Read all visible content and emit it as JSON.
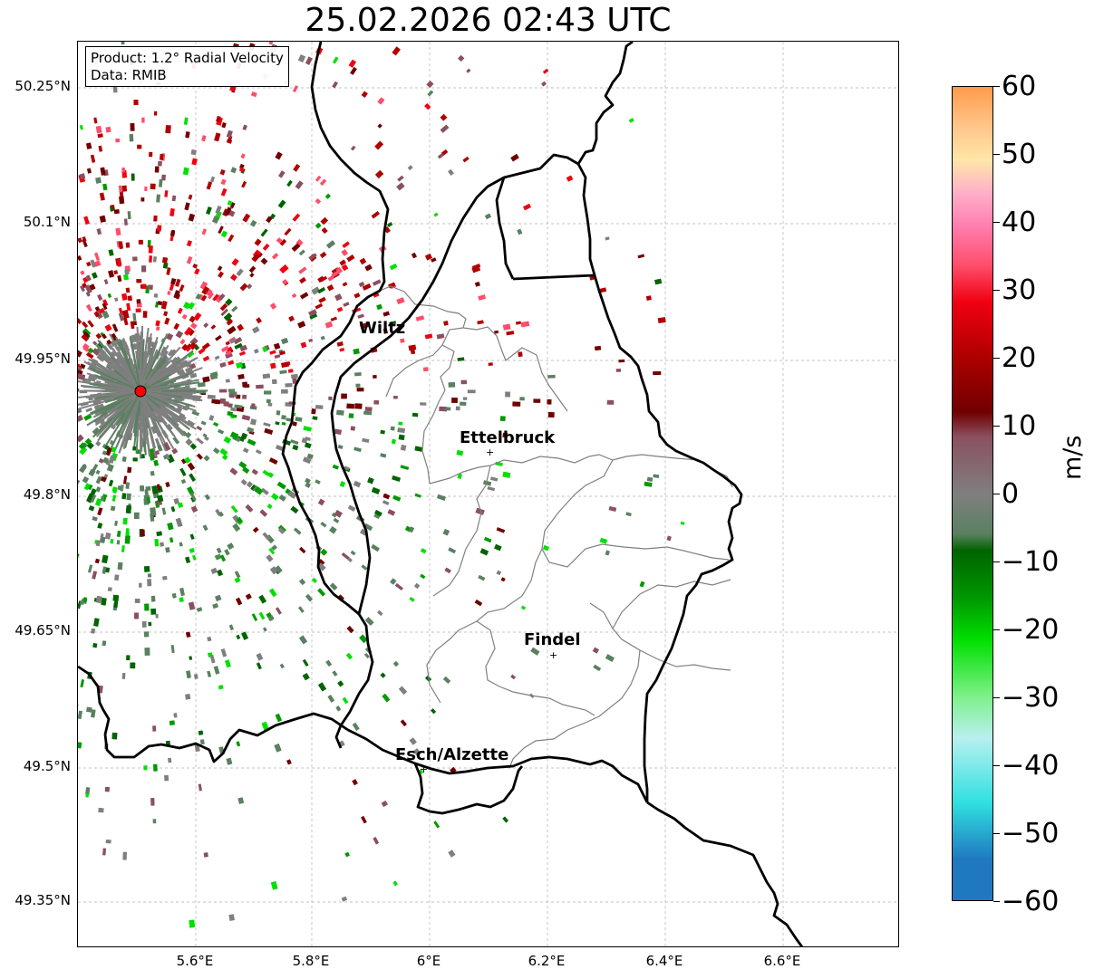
{
  "title": "25.02.2026 02:43 UTC",
  "info": {
    "product": "Product: 1.2° Radial Velocity",
    "source": "Data: RMIB"
  },
  "lat_labels": [
    "50.25°N",
    "50.1°N",
    "49.95°N",
    "49.8°N",
    "49.65°N",
    "49.5°N",
    "49.35°N"
  ],
  "lon_labels": [
    "5.6°E",
    "5.8°E",
    "6°E",
    "6.2°E",
    "6.4°E",
    "6.6°E"
  ],
  "cities": [
    {
      "name": "Wiltz"
    },
    {
      "name": "Ettelbruck"
    },
    {
      "name": "Findel"
    },
    {
      "name": "Esch/Alzette"
    }
  ],
  "colorbar": {
    "label": "m/s",
    "ticks": [
      "60",
      "50",
      "40",
      "30",
      "20",
      "10",
      "0",
      "−10",
      "−20",
      "−30",
      "−40",
      "−50",
      "−60"
    ],
    "range": [
      -60,
      60
    ],
    "colors": {
      "top": "#ff9a4d",
      "orange": "#ffc78a",
      "peach": "#ffe6a8",
      "pink_light": "#ffb0c8",
      "pink": "#ff7fb0",
      "pink_red": "#ff4d6a",
      "red": "#f00010",
      "dark_red": "#b00000",
      "maroon": "#700000",
      "mauve": "#8a5060",
      "gray": "#7f7f7f",
      "green_gray": "#5a8060",
      "dark_green": "#006400",
      "green": "#009900",
      "bright_green": "#00e000",
      "light_green": "#7ff08a",
      "light_cyan": "#b8f0f0",
      "cyan": "#30e0e0",
      "blue": "#1f78c0"
    }
  },
  "radar_site": {
    "color": "#ff0000"
  }
}
